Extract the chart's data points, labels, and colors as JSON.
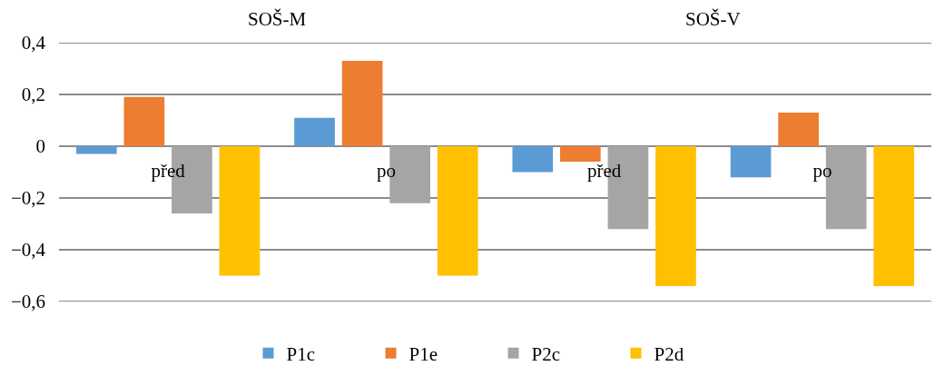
{
  "chart_data": {
    "type": "bar",
    "categories": [
      "před",
      "po",
      "před",
      "po"
    ],
    "annotations": [
      "SOŠ-M",
      "SOŠ-V"
    ],
    "series": [
      {
        "name": "P1c",
        "color": "#5b9bd5",
        "values": [
          -0.03,
          0.11,
          -0.1,
          -0.12
        ]
      },
      {
        "name": "P1e",
        "color": "#ed7d31",
        "values": [
          0.19,
          0.33,
          -0.06,
          0.13
        ]
      },
      {
        "name": "P2c",
        "color": "#a5a5a5",
        "values": [
          -0.26,
          -0.22,
          -0.32,
          -0.32
        ]
      },
      {
        "name": "P2d",
        "color": "#ffc000",
        "values": [
          -0.5,
          -0.5,
          -0.54,
          -0.54
        ]
      }
    ],
    "ylim": [
      -0.6,
      0.4
    ],
    "yticks": [
      {
        "value": -0.6,
        "label": "−0,6"
      },
      {
        "value": -0.4,
        "label": "−0,4"
      },
      {
        "value": -0.2,
        "label": "−0,2"
      },
      0,
      {
        "value": 0.2,
        "label": "0,2"
      },
      {
        "value": 0.4,
        "label": "0,4"
      }
    ],
    "grid": "y",
    "legend": "bottom"
  }
}
